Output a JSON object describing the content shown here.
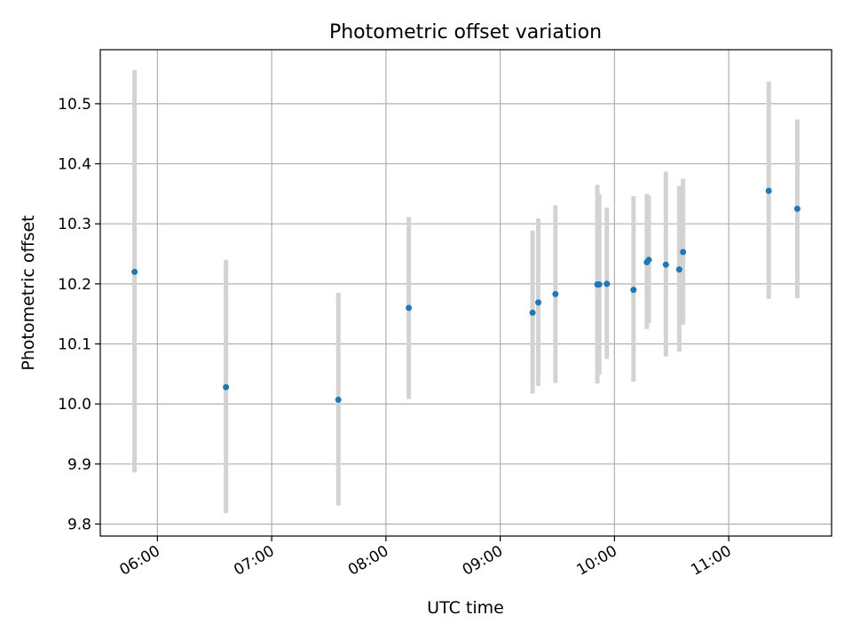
{
  "chart_data": {
    "type": "scatter",
    "title": "Photometric offset variation",
    "xlabel": "UTC time",
    "ylabel": "Photometric offset",
    "x_tick_labels": [
      "06:00",
      "07:00",
      "08:00",
      "09:00",
      "10:00",
      "11:00"
    ],
    "y_tick_labels": [
      "9.8",
      "9.9",
      "10.0",
      "10.1",
      "10.2",
      "10.3",
      "10.4",
      "10.5"
    ],
    "y_ticks": [
      9.8,
      9.9,
      10.0,
      10.1,
      10.2,
      10.3,
      10.4,
      10.5
    ],
    "x_ticks": [
      "06:00",
      "07:00",
      "08:00",
      "09:00",
      "10:00",
      "11:00"
    ],
    "xlim": [
      "05:30",
      "11:54"
    ],
    "ylim": [
      9.78,
      10.59
    ],
    "grid": true,
    "points": [
      {
        "x": "05:48",
        "y": 10.22,
        "low": 9.886,
        "high": 10.556
      },
      {
        "x": "06:36",
        "y": 10.028,
        "low": 9.818,
        "high": 10.24
      },
      {
        "x": "07:35",
        "y": 10.007,
        "low": 9.831,
        "high": 10.185
      },
      {
        "x": "08:12",
        "y": 10.16,
        "low": 10.008,
        "high": 10.311
      },
      {
        "x": "09:17",
        "y": 10.152,
        "low": 10.017,
        "high": 10.289
      },
      {
        "x": "09:20",
        "y": 10.169,
        "low": 10.03,
        "high": 10.309
      },
      {
        "x": "09:29",
        "y": 10.183,
        "low": 10.035,
        "high": 10.331
      },
      {
        "x": "09:51",
        "y": 10.199,
        "low": 10.034,
        "high": 10.365
      },
      {
        "x": "09:52",
        "y": 10.199,
        "low": 10.049,
        "high": 10.35
      },
      {
        "x": "09:56",
        "y": 10.2,
        "low": 10.075,
        "high": 10.327
      },
      {
        "x": "10:10",
        "y": 10.19,
        "low": 10.037,
        "high": 10.346
      },
      {
        "x": "10:17",
        "y": 10.236,
        "low": 10.125,
        "high": 10.35
      },
      {
        "x": "10:18",
        "y": 10.24,
        "low": 10.135,
        "high": 10.347
      },
      {
        "x": "10:27",
        "y": 10.232,
        "low": 10.079,
        "high": 10.387
      },
      {
        "x": "10:34",
        "y": 10.224,
        "low": 10.087,
        "high": 10.363
      },
      {
        "x": "10:36",
        "y": 10.253,
        "low": 10.132,
        "high": 10.375
      },
      {
        "x": "11:21",
        "y": 10.355,
        "low": 10.175,
        "high": 10.537
      },
      {
        "x": "11:36",
        "y": 10.325,
        "low": 10.176,
        "high": 10.474
      }
    ],
    "colors": {
      "point": "#1f77b4",
      "errorbar": "#d3d3d3",
      "grid": "#b0b0b0",
      "axis": "#000000"
    }
  }
}
